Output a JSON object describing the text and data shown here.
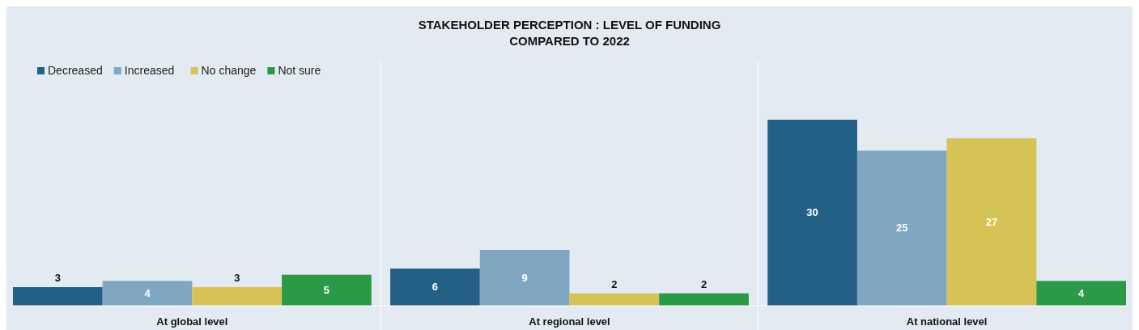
{
  "chart_data": {
    "type": "bar",
    "title": "STAKEHOLDER PERCEPTION : LEVEL OF FUNDING COMPARED TO 2022",
    "categories": [
      "At global level",
      "At regional level",
      "At national level"
    ],
    "series": [
      {
        "name": "Decreased",
        "color": "#245f86",
        "values": [
          3,
          6,
          30
        ]
      },
      {
        "name": "Increased",
        "color": "#7fa7c1",
        "values": [
          4,
          9,
          25
        ]
      },
      {
        "name": "No change",
        "color": "#d7c355",
        "values": [
          3,
          2,
          27
        ]
      },
      {
        "name": "Not sure",
        "color": "#2a9a47",
        "values": [
          5,
          2,
          4
        ]
      }
    ],
    "data_labels": true,
    "legend": "top left",
    "grid": false
  }
}
